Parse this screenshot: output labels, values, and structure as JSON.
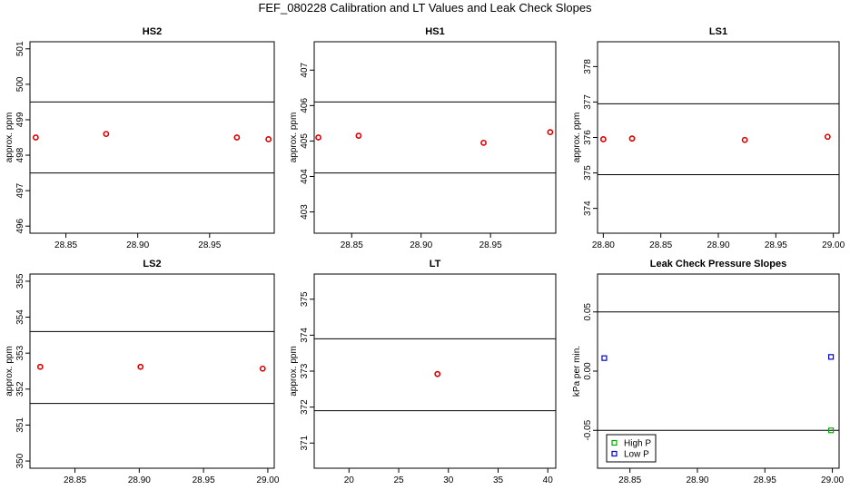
{
  "figure_title": "FEF_080228  Calibration and LT Values and Leak Check Slopes",
  "chart_data": [
    {
      "id": "hs2",
      "type": "scatter",
      "title": "HS2",
      "ylabel": "approx. ppm",
      "xlim": [
        28.825,
        28.995
      ],
      "ylim": [
        495.8,
        501.2
      ],
      "xticks": [
        28.85,
        28.9,
        28.95
      ],
      "xtick_labels": [
        "28.85",
        "28.90",
        "28.95"
      ],
      "yticks": [
        496,
        497,
        498,
        499,
        500,
        501
      ],
      "ytick_labels": [
        "496",
        "497",
        "498",
        "499",
        "500",
        "501"
      ],
      "hlines": [
        499.5,
        497.5
      ],
      "series": [
        {
          "color": "#dd0000",
          "x": [
            28.829,
            28.878,
            28.969,
            28.991
          ],
          "y": [
            498.5,
            498.6,
            498.5,
            498.45
          ]
        }
      ]
    },
    {
      "id": "hs1",
      "type": "scatter",
      "title": "HS1",
      "ylabel": "approx. ppm",
      "xlim": [
        28.823,
        28.997
      ],
      "ylim": [
        402.4,
        407.8
      ],
      "xticks": [
        28.85,
        28.9,
        28.95
      ],
      "xtick_labels": [
        "28.85",
        "28.90",
        "28.95"
      ],
      "yticks": [
        403,
        404,
        405,
        406,
        407
      ],
      "ytick_labels": [
        "403",
        "404",
        "405",
        "406",
        "407"
      ],
      "hlines": [
        406.1,
        404.1
      ],
      "series": [
        {
          "color": "#dd0000",
          "x": [
            28.826,
            28.855,
            28.945,
            28.993
          ],
          "y": [
            405.1,
            405.15,
            404.95,
            405.25
          ]
        }
      ]
    },
    {
      "id": "ls1",
      "type": "scatter",
      "title": "LS1",
      "ylabel": "approx. ppm",
      "xlim": [
        28.795,
        29.005
      ],
      "ylim": [
        373.3,
        378.7
      ],
      "xticks": [
        28.8,
        28.85,
        28.9,
        28.95,
        29.0
      ],
      "xtick_labels": [
        "28.80",
        "28.85",
        "28.90",
        "28.95",
        "29.00"
      ],
      "yticks": [
        374,
        375,
        376,
        377,
        378
      ],
      "ytick_labels": [
        "374",
        "375",
        "376",
        "377",
        "378"
      ],
      "hlines": [
        376.95,
        374.95
      ],
      "series": [
        {
          "color": "#dd0000",
          "x": [
            28.8,
            28.825,
            28.923,
            28.995
          ],
          "y": [
            375.95,
            375.97,
            375.93,
            376.02
          ]
        }
      ]
    },
    {
      "id": "ls2",
      "type": "scatter",
      "title": "LS2",
      "ylabel": "approx. ppm",
      "xlim": [
        28.815,
        29.005
      ],
      "ylim": [
        349.8,
        355.2
      ],
      "xticks": [
        28.85,
        28.9,
        28.95,
        29.0
      ],
      "xtick_labels": [
        "28.85",
        "28.90",
        "28.95",
        "29.00"
      ],
      "yticks": [
        350,
        351,
        352,
        353,
        354,
        355
      ],
      "ytick_labels": [
        "350",
        "351",
        "352",
        "353",
        "354",
        "355"
      ],
      "hlines": [
        353.6,
        351.6
      ],
      "series": [
        {
          "color": "#dd0000",
          "x": [
            28.823,
            28.901,
            28.996
          ],
          "y": [
            352.62,
            352.62,
            352.57
          ]
        }
      ]
    },
    {
      "id": "lt",
      "type": "scatter",
      "title": "LT",
      "ylabel": "approx. ppm",
      "xlim": [
        16.5,
        40.8
      ],
      "ylim": [
        370.3,
        375.7
      ],
      "xticks": [
        20,
        25,
        30,
        35,
        40
      ],
      "xtick_labels": [
        "20",
        "25",
        "30",
        "35",
        "40"
      ],
      "yticks": [
        371,
        372,
        373,
        374,
        375
      ],
      "ytick_labels": [
        "371",
        "372",
        "373",
        "374",
        "375"
      ],
      "hlines": [
        373.9,
        371.9
      ],
      "series": [
        {
          "color": "#dd0000",
          "x": [
            28.9
          ],
          "y": [
            372.92
          ]
        }
      ]
    },
    {
      "id": "leak",
      "type": "scatter",
      "title": "Leak Check Pressure Slopes",
      "ylabel": "kPa per min.",
      "xlim": [
        28.826,
        29.005
      ],
      "ylim": [
        -0.082,
        0.082
      ],
      "xticks": [
        28.85,
        28.9,
        28.95,
        29.0
      ],
      "xtick_labels": [
        "28.85",
        "28.90",
        "28.95",
        "29.00"
      ],
      "yticks": [
        -0.05,
        0.0,
        0.05
      ],
      "ytick_labels": [
        "-0.05",
        "0.00",
        "0.05"
      ],
      "hlines": [
        0.05,
        -0.05
      ],
      "series": [
        {
          "name": "High P",
          "color": "#00aa00",
          "x": [
            28.999
          ],
          "y": [
            -0.05
          ]
        },
        {
          "name": "Low P",
          "color": "#0000cc",
          "x": [
            28.831,
            28.999
          ],
          "y": [
            0.011,
            0.012
          ]
        }
      ],
      "legend": "bottom-left"
    }
  ]
}
